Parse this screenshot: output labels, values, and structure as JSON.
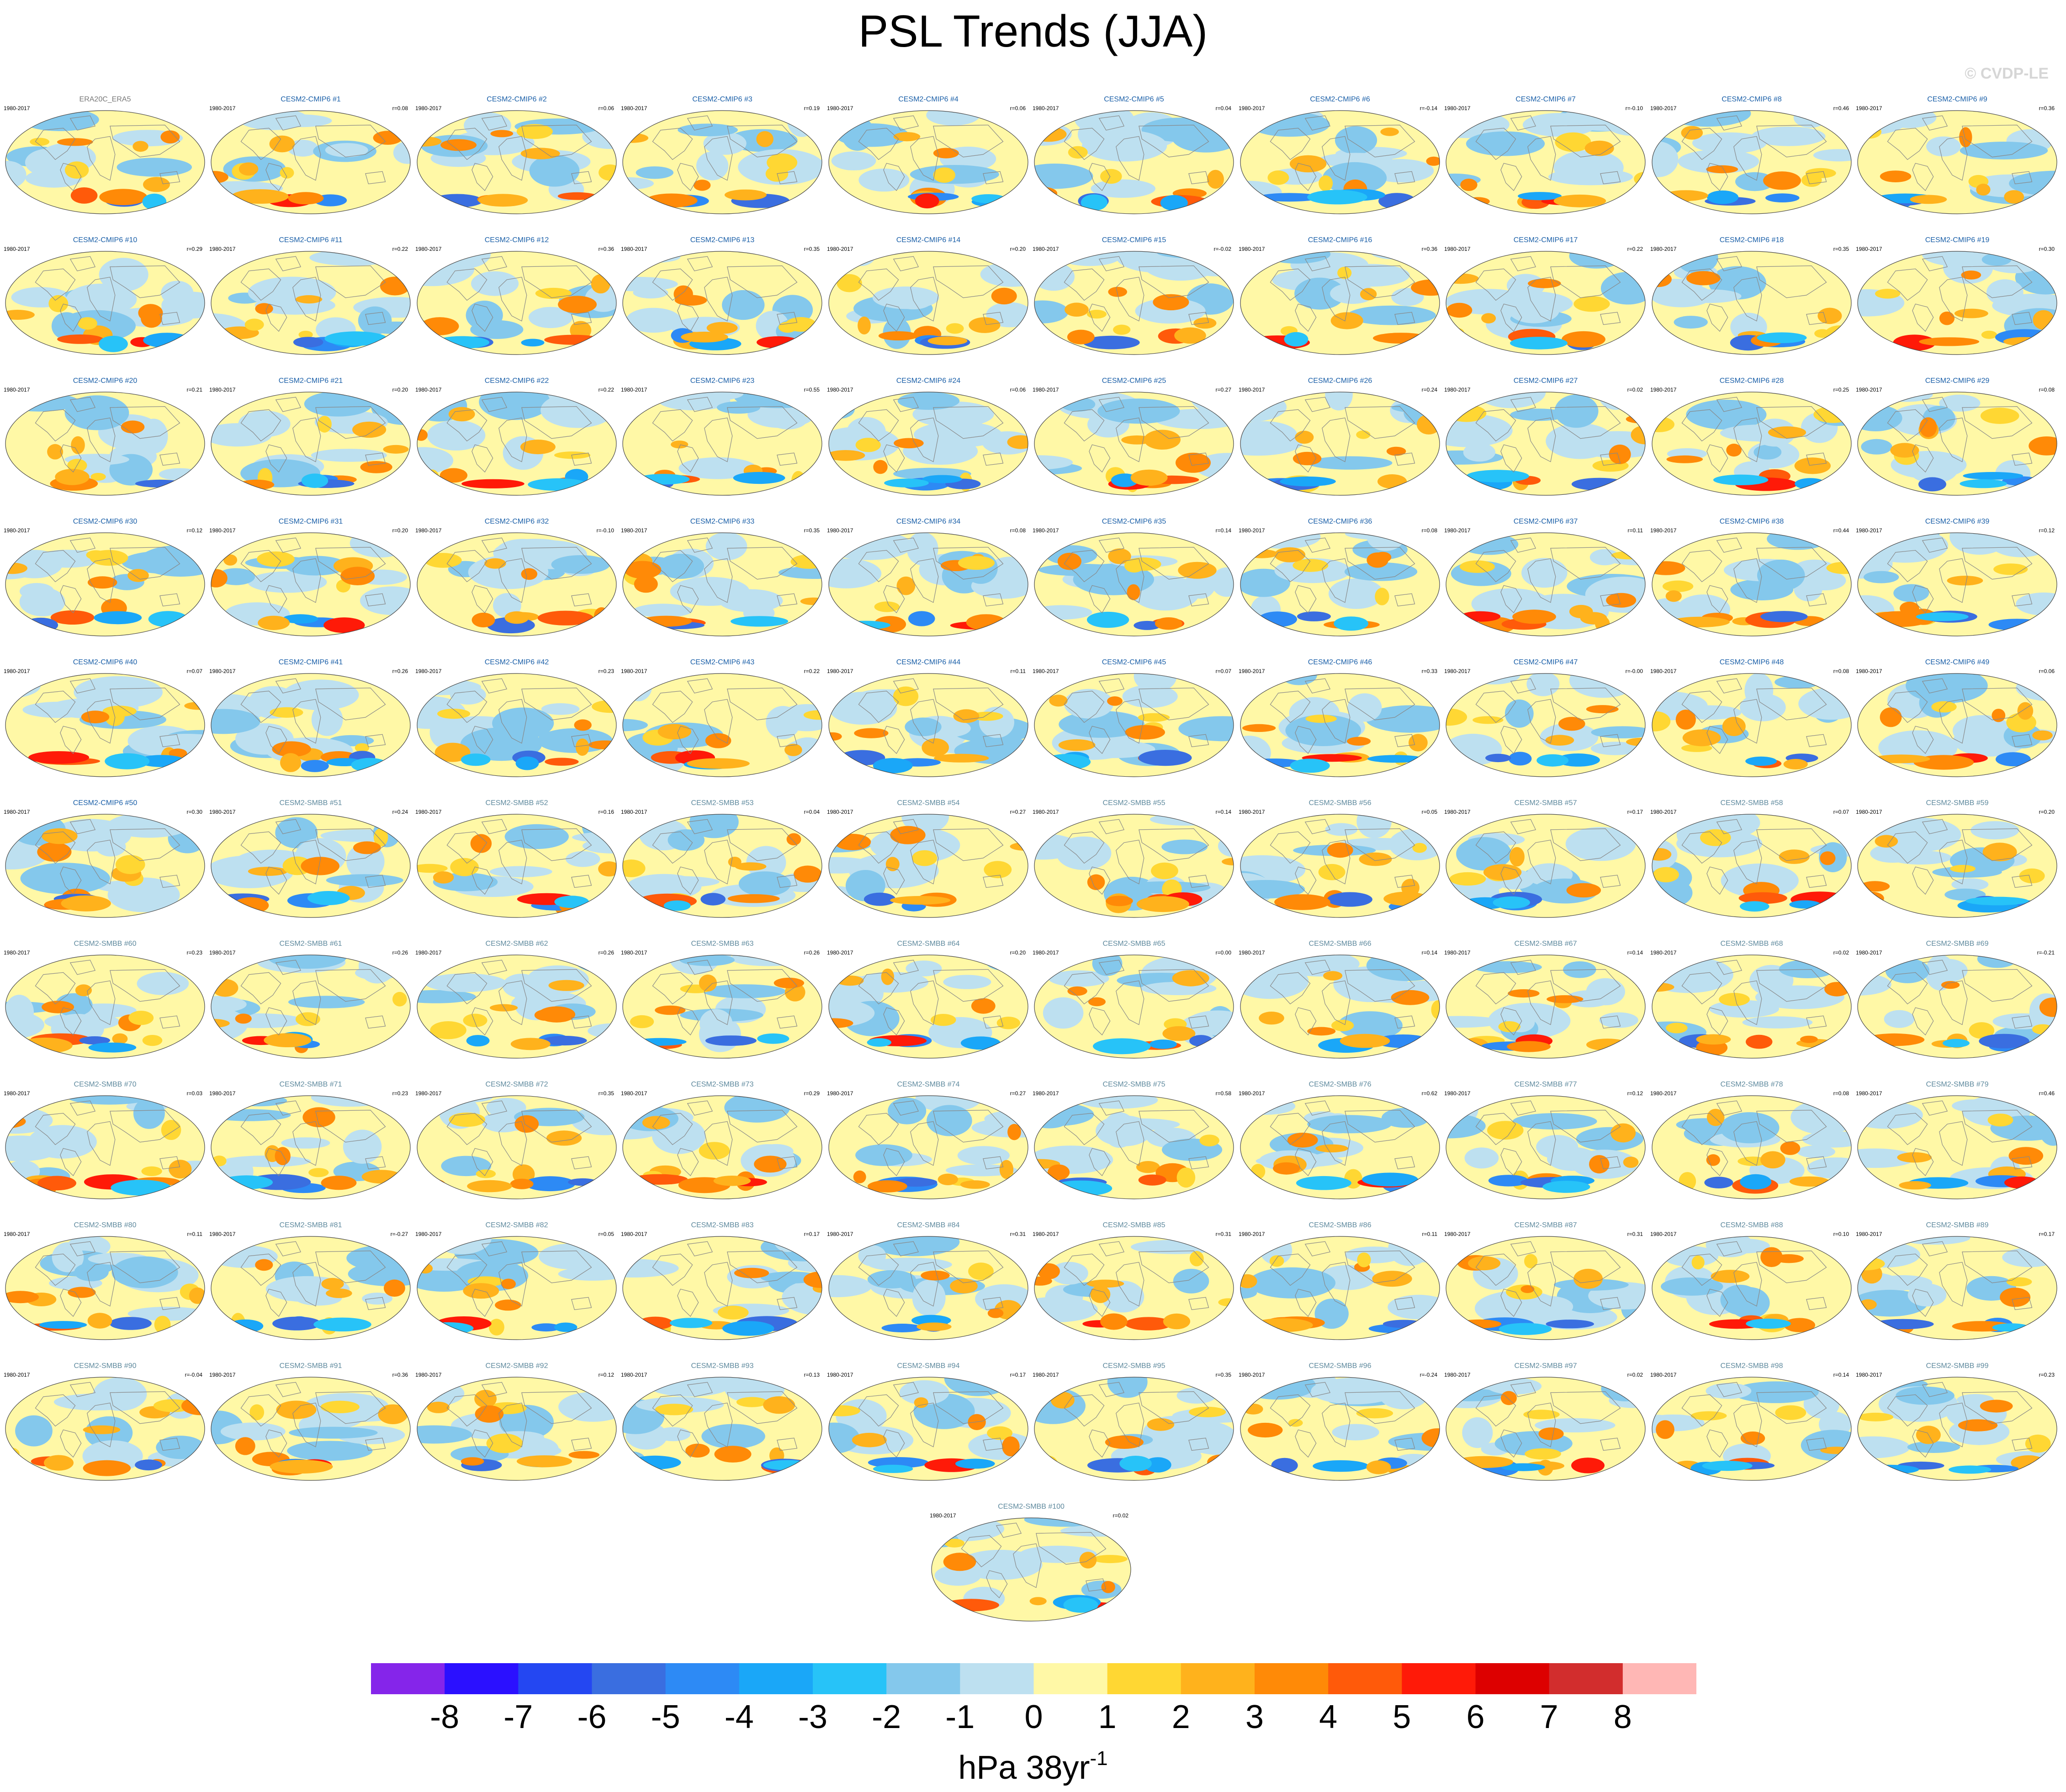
{
  "figure": {
    "title": "PSL Trends (JJA)",
    "watermark": "© CVDP-LE",
    "colorbar_units": "hPa 38yr",
    "colorbar_units_exponent": "-1"
  },
  "chart_data": {
    "type": "heatmap",
    "title": "PSL Trends (JJA)",
    "description_type": "grid of global sea level pressure trend maps (Hammer projection)",
    "colorbar": {
      "ticks": [
        "-8",
        "-7",
        "-6",
        "-5",
        "-4",
        "-3",
        "-2",
        "-1",
        "0",
        "1",
        "2",
        "3",
        "4",
        "5",
        "6",
        "7",
        "8"
      ],
      "colors": [
        "#8525ea",
        "#2b10ff",
        "#2447f2",
        "#3a6ee0",
        "#2d8af5",
        "#1aa7f8",
        "#27c3f8",
        "#84c8ec",
        "#bde0f0",
        "#fff8a6",
        "#ffd733",
        "#ffb21c",
        "#ff8a07",
        "#ff5a0a",
        "#ff1a08",
        "#dd0000",
        "#d22d2d",
        "#ffb7b5"
      ],
      "units": "hPa 38yr^-1"
    },
    "panels": [
      {
        "name": "ERA20C_ERA5",
        "period": "1980-2017",
        "corr": ""
      },
      {
        "name": "CESM2-CMIP6 #1",
        "period": "1980-2017",
        "corr": "r=0.08"
      },
      {
        "name": "CESM2-CMIP6 #2",
        "period": "1980-2017",
        "corr": "r=0.06"
      },
      {
        "name": "CESM2-CMIP6 #3",
        "period": "1980-2017",
        "corr": "r=0.19"
      },
      {
        "name": "CESM2-CMIP6 #4",
        "period": "1980-2017",
        "corr": "r=0.06"
      },
      {
        "name": "CESM2-CMIP6 #5",
        "period": "1980-2017",
        "corr": "r=0.04"
      },
      {
        "name": "CESM2-CMIP6 #6",
        "period": "1980-2017",
        "corr": "r=-0.14"
      },
      {
        "name": "CESM2-CMIP6 #7",
        "period": "1980-2017",
        "corr": "r=-0.10"
      },
      {
        "name": "CESM2-CMIP6 #8",
        "period": "1980-2017",
        "corr": "r=0.46"
      },
      {
        "name": "CESM2-CMIP6 #9",
        "period": "1980-2017",
        "corr": "r=0.36"
      },
      {
        "name": "CESM2-CMIP6 #10",
        "period": "1980-2017",
        "corr": "r=0.29"
      },
      {
        "name": "CESM2-CMIP6 #11",
        "period": "1980-2017",
        "corr": "r=0.22"
      },
      {
        "name": "CESM2-CMIP6 #12",
        "period": "1980-2017",
        "corr": "r=0.36"
      },
      {
        "name": "CESM2-CMIP6 #13",
        "period": "1980-2017",
        "corr": "r=0.35"
      },
      {
        "name": "CESM2-CMIP6 #14",
        "period": "1980-2017",
        "corr": "r=0.20"
      },
      {
        "name": "CESM2-CMIP6 #15",
        "period": "1980-2017",
        "corr": "r=-0.02"
      },
      {
        "name": "CESM2-CMIP6 #16",
        "period": "1980-2017",
        "corr": "r=0.36"
      },
      {
        "name": "CESM2-CMIP6 #17",
        "period": "1980-2017",
        "corr": "r=0.22"
      },
      {
        "name": "CESM2-CMIP6 #18",
        "period": "1980-2017",
        "corr": "r=0.35"
      },
      {
        "name": "CESM2-CMIP6 #19",
        "period": "1980-2017",
        "corr": "r=0.30"
      },
      {
        "name": "CESM2-CMIP6 #20",
        "period": "1980-2017",
        "corr": "r=0.21"
      },
      {
        "name": "CESM2-CMIP6 #21",
        "period": "1980-2017",
        "corr": "r=0.20"
      },
      {
        "name": "CESM2-CMIP6 #22",
        "period": "1980-2017",
        "corr": "r=0.22"
      },
      {
        "name": "CESM2-CMIP6 #23",
        "period": "1980-2017",
        "corr": "r=0.55"
      },
      {
        "name": "CESM2-CMIP6 #24",
        "period": "1980-2017",
        "corr": "r=0.06"
      },
      {
        "name": "CESM2-CMIP6 #25",
        "period": "1980-2017",
        "corr": "r=0.27"
      },
      {
        "name": "CESM2-CMIP6 #26",
        "period": "1980-2017",
        "corr": "r=0.24"
      },
      {
        "name": "CESM2-CMIP6 #27",
        "period": "1980-2017",
        "corr": "r=0.02"
      },
      {
        "name": "CESM2-CMIP6 #28",
        "period": "1980-2017",
        "corr": "r=0.25"
      },
      {
        "name": "CESM2-CMIP6 #29",
        "period": "1980-2017",
        "corr": "r=0.08"
      },
      {
        "name": "CESM2-CMIP6 #30",
        "period": "1980-2017",
        "corr": "r=0.12"
      },
      {
        "name": "CESM2-CMIP6 #31",
        "period": "1980-2017",
        "corr": "r=0.20"
      },
      {
        "name": "CESM2-CMIP6 #32",
        "period": "1980-2017",
        "corr": "r=-0.10"
      },
      {
        "name": "CESM2-CMIP6 #33",
        "period": "1980-2017",
        "corr": "r=0.35"
      },
      {
        "name": "CESM2-CMIP6 #34",
        "period": "1980-2017",
        "corr": "r=0.08"
      },
      {
        "name": "CESM2-CMIP6 #35",
        "period": "1980-2017",
        "corr": "r=0.14"
      },
      {
        "name": "CESM2-CMIP6 #36",
        "period": "1980-2017",
        "corr": "r=0.08"
      },
      {
        "name": "CESM2-CMIP6 #37",
        "period": "1980-2017",
        "corr": "r=0.11"
      },
      {
        "name": "CESM2-CMIP6 #38",
        "period": "1980-2017",
        "corr": "r=0.44"
      },
      {
        "name": "CESM2-CMIP6 #39",
        "period": "1980-2017",
        "corr": "r=0.12"
      },
      {
        "name": "CESM2-CMIP6 #40",
        "period": "1980-2017",
        "corr": "r=0.07"
      },
      {
        "name": "CESM2-CMIP6 #41",
        "period": "1980-2017",
        "corr": "r=0.26"
      },
      {
        "name": "CESM2-CMIP6 #42",
        "period": "1980-2017",
        "corr": "r=0.23"
      },
      {
        "name": "CESM2-CMIP6 #43",
        "period": "1980-2017",
        "corr": "r=0.22"
      },
      {
        "name": "CESM2-CMIP6 #44",
        "period": "1980-2017",
        "corr": "r=0.11"
      },
      {
        "name": "CESM2-CMIP6 #45",
        "period": "1980-2017",
        "corr": "r=0.07"
      },
      {
        "name": "CESM2-CMIP6 #46",
        "period": "1980-2017",
        "corr": "r=0.33"
      },
      {
        "name": "CESM2-CMIP6 #47",
        "period": "1980-2017",
        "corr": "r=-0.00"
      },
      {
        "name": "CESM2-CMIP6 #48",
        "period": "1980-2017",
        "corr": "r=0.08"
      },
      {
        "name": "CESM2-CMIP6 #49",
        "period": "1980-2017",
        "corr": "r=0.06"
      },
      {
        "name": "CESM2-CMIP6 #50",
        "period": "1980-2017",
        "corr": "r=0.30"
      },
      {
        "name": "CESM2-SMBB #51",
        "period": "1980-2017",
        "corr": "r=0.24"
      },
      {
        "name": "CESM2-SMBB #52",
        "period": "1980-2017",
        "corr": "r=0.16"
      },
      {
        "name": "CESM2-SMBB #53",
        "period": "1980-2017",
        "corr": "r=0.04"
      },
      {
        "name": "CESM2-SMBB #54",
        "period": "1980-2017",
        "corr": "r=0.27"
      },
      {
        "name": "CESM2-SMBB #55",
        "period": "1980-2017",
        "corr": "r=0.14"
      },
      {
        "name": "CESM2-SMBB #56",
        "period": "1980-2017",
        "corr": "r=0.05"
      },
      {
        "name": "CESM2-SMBB #57",
        "period": "1980-2017",
        "corr": "r=0.17"
      },
      {
        "name": "CESM2-SMBB #58",
        "period": "1980-2017",
        "corr": "r=0.07"
      },
      {
        "name": "CESM2-SMBB #59",
        "period": "1980-2017",
        "corr": "r=0.20"
      },
      {
        "name": "CESM2-SMBB #60",
        "period": "1980-2017",
        "corr": "r=0.23"
      },
      {
        "name": "CESM2-SMBB #61",
        "period": "1980-2017",
        "corr": "r=0.26"
      },
      {
        "name": "CESM2-SMBB #62",
        "period": "1980-2017",
        "corr": "r=0.26"
      },
      {
        "name": "CESM2-SMBB #63",
        "period": "1980-2017",
        "corr": "r=0.26"
      },
      {
        "name": "CESM2-SMBB #64",
        "period": "1980-2017",
        "corr": "r=0.20"
      },
      {
        "name": "CESM2-SMBB #65",
        "period": "1980-2017",
        "corr": "r=0.00"
      },
      {
        "name": "CESM2-SMBB #66",
        "period": "1980-2017",
        "corr": "r=0.14"
      },
      {
        "name": "CESM2-SMBB #67",
        "period": "1980-2017",
        "corr": "r=0.14"
      },
      {
        "name": "CESM2-SMBB #68",
        "period": "1980-2017",
        "corr": "r=0.02"
      },
      {
        "name": "CESM2-SMBB #69",
        "period": "1980-2017",
        "corr": "r=-0.21"
      },
      {
        "name": "CESM2-SMBB #70",
        "period": "1980-2017",
        "corr": "r=0.03"
      },
      {
        "name": "CESM2-SMBB #71",
        "period": "1980-2017",
        "corr": "r=0.23"
      },
      {
        "name": "CESM2-SMBB #72",
        "period": "1980-2017",
        "corr": "r=0.35"
      },
      {
        "name": "CESM2-SMBB #73",
        "period": "1980-2017",
        "corr": "r=0.29"
      },
      {
        "name": "CESM2-SMBB #74",
        "period": "1980-2017",
        "corr": "r=0.27"
      },
      {
        "name": "CESM2-SMBB #75",
        "period": "1980-2017",
        "corr": "r=0.58"
      },
      {
        "name": "CESM2-SMBB #76",
        "period": "1980-2017",
        "corr": "r=0.62"
      },
      {
        "name": "CESM2-SMBB #77",
        "period": "1980-2017",
        "corr": "r=0.12"
      },
      {
        "name": "CESM2-SMBB #78",
        "period": "1980-2017",
        "corr": "r=0.08"
      },
      {
        "name": "CESM2-SMBB #79",
        "period": "1980-2017",
        "corr": "r=0.46"
      },
      {
        "name": "CESM2-SMBB #80",
        "period": "1980-2017",
        "corr": "r=0.11"
      },
      {
        "name": "CESM2-SMBB #81",
        "period": "1980-2017",
        "corr": "r=-0.27"
      },
      {
        "name": "CESM2-SMBB #82",
        "period": "1980-2017",
        "corr": "r=0.05"
      },
      {
        "name": "CESM2-SMBB #83",
        "period": "1980-2017",
        "corr": "r=0.17"
      },
      {
        "name": "CESM2-SMBB #84",
        "period": "1980-2017",
        "corr": "r=0.31"
      },
      {
        "name": "CESM2-SMBB #85",
        "period": "1980-2017",
        "corr": "r=0.31"
      },
      {
        "name": "CESM2-SMBB #86",
        "period": "1980-2017",
        "corr": "r=0.11"
      },
      {
        "name": "CESM2-SMBB #87",
        "period": "1980-2017",
        "corr": "r=0.31"
      },
      {
        "name": "CESM2-SMBB #88",
        "period": "1980-2017",
        "corr": "r=0.10"
      },
      {
        "name": "CESM2-SMBB #89",
        "period": "1980-2017",
        "corr": "r=0.17"
      },
      {
        "name": "CESM2-SMBB #90",
        "period": "1980-2017",
        "corr": "r=-0.04"
      },
      {
        "name": "CESM2-SMBB #91",
        "period": "1980-2017",
        "corr": "r=0.36"
      },
      {
        "name": "CESM2-SMBB #92",
        "period": "1980-2017",
        "corr": "r=0.12"
      },
      {
        "name": "CESM2-SMBB #93",
        "period": "1980-2017",
        "corr": "r=0.13"
      },
      {
        "name": "CESM2-SMBB #94",
        "period": "1980-2017",
        "corr": "r=0.17"
      },
      {
        "name": "CESM2-SMBB #95",
        "period": "1980-2017",
        "corr": "r=0.35"
      },
      {
        "name": "CESM2-SMBB #96",
        "period": "1980-2017",
        "corr": "r=-0.24"
      },
      {
        "name": "CESM2-SMBB #97",
        "period": "1980-2017",
        "corr": "r=0.02"
      },
      {
        "name": "CESM2-SMBB #98",
        "period": "1980-2017",
        "corr": "r=0.14"
      },
      {
        "name": "CESM2-SMBB #99",
        "period": "1980-2017",
        "corr": "r=0.23"
      },
      {
        "name": "CESM2-SMBB #100",
        "period": "1980-2017",
        "corr": "r=0.02"
      }
    ]
  }
}
